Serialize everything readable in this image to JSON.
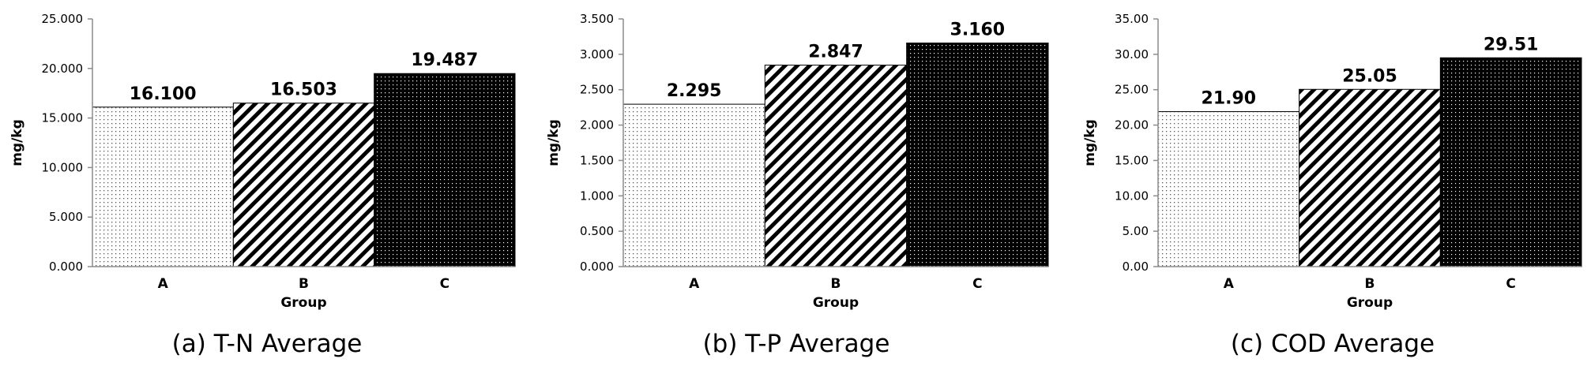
{
  "chart_data": [
    {
      "type": "bar",
      "caption": "(a) T-N Average",
      "categories": [
        "A",
        "B",
        "C"
      ],
      "values": [
        16.1,
        16.503,
        19.487
      ],
      "value_labels": [
        "16.100",
        "16.503",
        "19.487"
      ],
      "xlabel": "Group",
      "ylabel": "mg/kg",
      "ylim": [
        0,
        25
      ],
      "yticks": [
        "0.000",
        "5.000",
        "10.000",
        "15.000",
        "20.000",
        "25.000"
      ],
      "grid": false
    },
    {
      "type": "bar",
      "caption": "(b) T-P Average",
      "categories": [
        "A",
        "B",
        "C"
      ],
      "values": [
        2.295,
        2.847,
        3.16
      ],
      "value_labels": [
        "2.295",
        "2.847",
        "3.160"
      ],
      "xlabel": "Group",
      "ylabel": "mg/kg",
      "ylim": [
        0,
        3.5
      ],
      "yticks": [
        "0.000",
        "0.500",
        "1.000",
        "1.500",
        "2.000",
        "2.500",
        "3.000",
        "3.500"
      ],
      "grid": false
    },
    {
      "type": "bar",
      "caption": "(c) COD Average",
      "categories": [
        "A",
        "B",
        "C"
      ],
      "values": [
        21.9,
        25.05,
        29.51
      ],
      "value_labels": [
        "21.90",
        "25.05",
        "29.51"
      ],
      "xlabel": "Group",
      "ylabel": "mg/kg",
      "ylim": [
        0,
        35
      ],
      "yticks": [
        "0.00",
        "5.00",
        "10.00",
        "15.00",
        "20.00",
        "25.00",
        "30.00",
        "35.00"
      ],
      "grid": false
    }
  ],
  "bar_patterns": [
    "pattern-dots-light",
    "pattern-diagonal-stripes",
    "pattern-dots-dark"
  ],
  "colors": {
    "ink": "#000000",
    "axis": "#8c8c8c",
    "background": "#ffffff"
  }
}
